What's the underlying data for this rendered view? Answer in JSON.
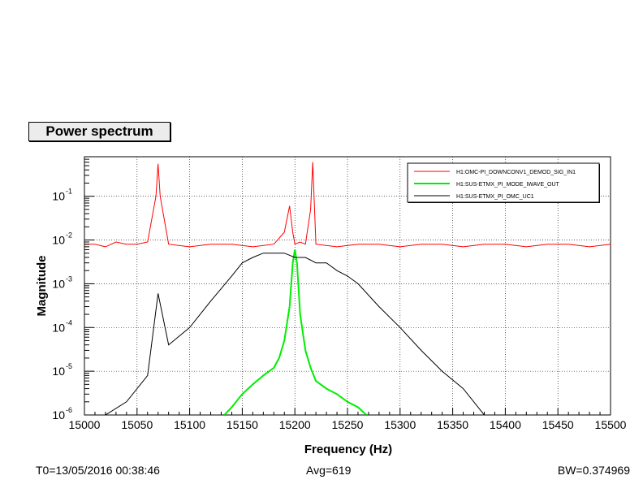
{
  "title": "Power spectrum",
  "footer": {
    "t0": "T0=13/05/2016 00:38:46",
    "avg": "Avg=619",
    "bw": "BW=0.374969"
  },
  "colors": {
    "red": "#ff0000",
    "green": "#00ee00",
    "black": "#000000",
    "grid": "#000000",
    "frame_bg": "#ffffff"
  },
  "chart_data": {
    "type": "line",
    "xlabel": "Frequency (Hz)",
    "ylabel": "Magnitude",
    "xlim": [
      15000,
      15500
    ],
    "ylim": [
      1e-06,
      0.8
    ],
    "y_scale": "log",
    "grid": true,
    "legend_position": "top-right",
    "x_ticks": [
      "15000",
      "15050",
      "15100",
      "15150",
      "15200",
      "15250",
      "15300",
      "15350",
      "15400",
      "15450",
      "15500"
    ],
    "y_ticks": [
      {
        "base": "10",
        "exp": "-6"
      },
      {
        "base": "10",
        "exp": "-5"
      },
      {
        "base": "10",
        "exp": "-4"
      },
      {
        "base": "10",
        "exp": "-3"
      },
      {
        "base": "10",
        "exp": "-2"
      },
      {
        "base": "10",
        "exp": "-1"
      }
    ],
    "series": [
      {
        "name": "H1:OMC-PI_DOWNCONV1_DEMOD_SIG_IN1",
        "color": "#ff0000",
        "x": [
          15000,
          15010,
          15020,
          15030,
          15040,
          15050,
          15060,
          15068,
          15070,
          15072,
          15080,
          15100,
          15120,
          15140,
          15160,
          15180,
          15190,
          15195,
          15198,
          15200,
          15205,
          15210,
          15215,
          15217,
          15220,
          15240,
          15260,
          15280,
          15300,
          15320,
          15340,
          15360,
          15380,
          15400,
          15420,
          15440,
          15460,
          15480,
          15500
        ],
        "y": [
          0.008,
          0.008,
          0.007,
          0.009,
          0.008,
          0.008,
          0.009,
          0.1,
          0.55,
          0.1,
          0.008,
          0.007,
          0.008,
          0.008,
          0.007,
          0.008,
          0.015,
          0.06,
          0.015,
          0.008,
          0.009,
          0.008,
          0.05,
          0.6,
          0.008,
          0.007,
          0.008,
          0.008,
          0.007,
          0.008,
          0.008,
          0.007,
          0.008,
          0.008,
          0.007,
          0.008,
          0.008,
          0.007,
          0.008
        ]
      },
      {
        "name": "H1:SUS-ETMX_PI_MODE_IWAVE_OUT",
        "color": "#00ee00",
        "x": [
          15133,
          15140,
          15150,
          15160,
          15170,
          15180,
          15185,
          15190,
          15195,
          15198,
          15200,
          15202,
          15205,
          15210,
          15215,
          15220,
          15230,
          15240,
          15250,
          15260,
          15268
        ],
        "y": [
          1e-06,
          1.5e-06,
          3e-06,
          5e-06,
          8e-06,
          1.2e-05,
          2e-05,
          5e-05,
          0.0003,
          0.003,
          0.006,
          0.003,
          0.0002,
          3e-05,
          1.2e-05,
          6e-06,
          4e-06,
          3e-06,
          2e-06,
          1.5e-06,
          1e-06
        ]
      },
      {
        "name": "H1:SUS-ETMX_PI_OMC_UC1",
        "color": "#000000",
        "x": [
          15020,
          15040,
          15060,
          15070,
          15080,
          15100,
          15120,
          15140,
          15150,
          15160,
          15170,
          15180,
          15190,
          15200,
          15210,
          15220,
          15230,
          15240,
          15250,
          15260,
          15280,
          15300,
          15320,
          15340,
          15360,
          15380
        ],
        "y": [
          1e-06,
          2e-06,
          8e-06,
          0.0006,
          4e-05,
          0.0001,
          0.0004,
          0.0015,
          0.003,
          0.004,
          0.005,
          0.005,
          0.005,
          0.004,
          0.004,
          0.003,
          0.003,
          0.002,
          0.0015,
          0.001,
          0.0003,
          0.0001,
          3e-05,
          1e-05,
          4e-06,
          1e-06
        ]
      }
    ]
  }
}
